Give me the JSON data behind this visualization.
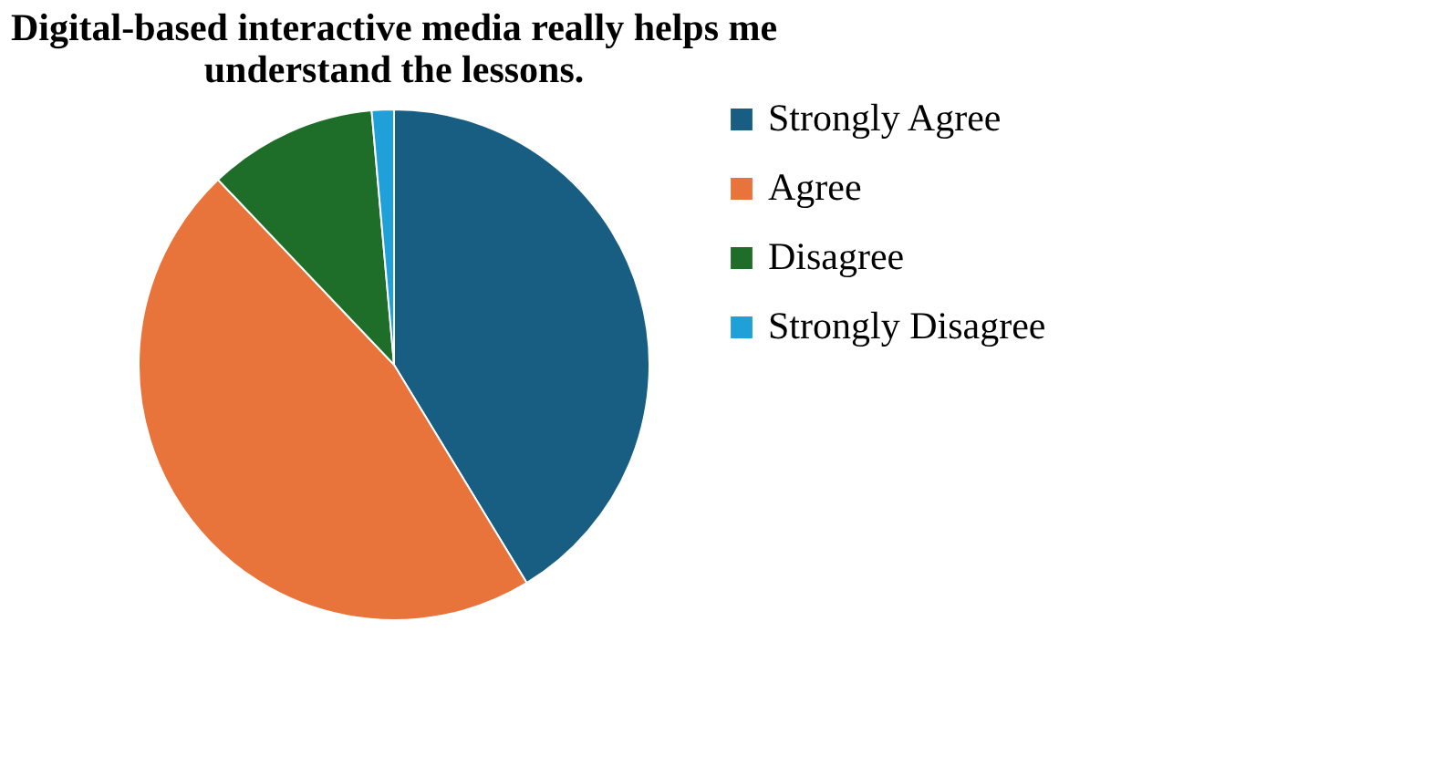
{
  "chart_data": {
    "type": "pie",
    "title": "Digital-based interactive media really helps me understand the lessons.",
    "categories": [
      "Strongly Agree",
      "Agree",
      "Disagree",
      "Strongly Disagree"
    ],
    "values": [
      41.3,
      46.6,
      10.7,
      1.4
    ],
    "colors": [
      "#175e82",
      "#e8743b",
      "#1e6e2a",
      "#1fa0d8"
    ],
    "legend": "right"
  }
}
